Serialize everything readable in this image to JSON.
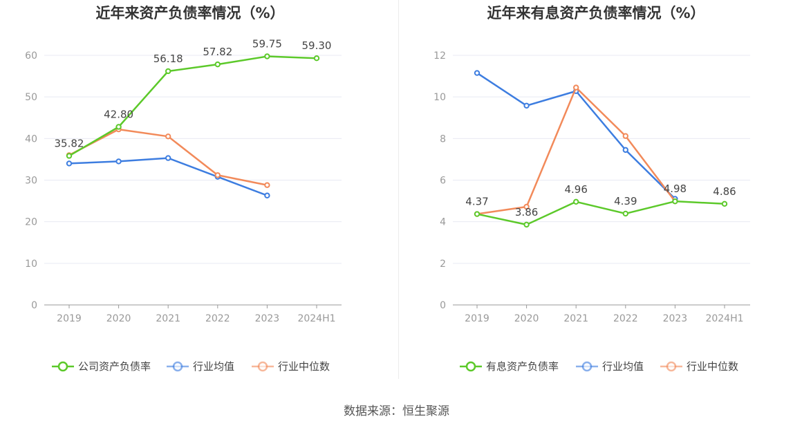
{
  "source_text": "数据来源：恒生聚源",
  "colors": {
    "green": "#5cc92a",
    "blue": "#3d7de0",
    "orange": "#f28a5a",
    "axis": "#999999",
    "grid": "#e8eaf3",
    "text": "#666666"
  },
  "chart_data": [
    {
      "type": "line",
      "title": "近年来资产负债率情况（%）",
      "categories": [
        "2019",
        "2020",
        "2021",
        "2022",
        "2023",
        "2024H1"
      ],
      "ylim": [
        0,
        60
      ],
      "yticks": [
        0,
        10,
        20,
        30,
        40,
        50,
        60
      ],
      "grid": true,
      "legend_position": "bottom",
      "series": [
        {
          "name": "公司资产负债率",
          "color": "#5cc92a",
          "values": [
            35.82,
            42.8,
            56.18,
            57.82,
            59.75,
            59.3
          ],
          "labels": [
            "35.82",
            "42.80",
            "56.18",
            "57.82",
            "59.75",
            "59.30"
          ]
        },
        {
          "name": "行业均值",
          "color": "#3d7de0",
          "values": [
            34.0,
            34.5,
            35.3,
            30.8,
            26.3,
            null
          ]
        },
        {
          "name": "行业中位数",
          "color": "#f28a5a",
          "values": [
            36.0,
            42.2,
            40.5,
            31.2,
            28.8,
            null
          ]
        }
      ]
    },
    {
      "type": "line",
      "title": "近年来有息资产负债率情况（%）",
      "categories": [
        "2019",
        "2020",
        "2021",
        "2022",
        "2023",
        "2024H1"
      ],
      "ylim": [
        0,
        12
      ],
      "yticks": [
        0,
        2,
        4,
        6,
        8,
        10,
        12
      ],
      "grid": true,
      "legend_position": "bottom",
      "series": [
        {
          "name": "有息资产负债率",
          "color": "#5cc92a",
          "values": [
            4.37,
            3.86,
            4.96,
            4.39,
            4.98,
            4.86
          ],
          "labels": [
            "4.37",
            "3.86",
            "4.96",
            "4.39",
            "4.98",
            "4.86"
          ]
        },
        {
          "name": "行业均值",
          "color": "#3d7de0",
          "values": [
            11.15,
            9.58,
            10.28,
            7.45,
            5.1,
            null
          ]
        },
        {
          "name": "行业中位数",
          "color": "#f28a5a",
          "values": [
            4.37,
            4.72,
            10.45,
            8.12,
            4.98,
            null
          ]
        }
      ]
    }
  ]
}
